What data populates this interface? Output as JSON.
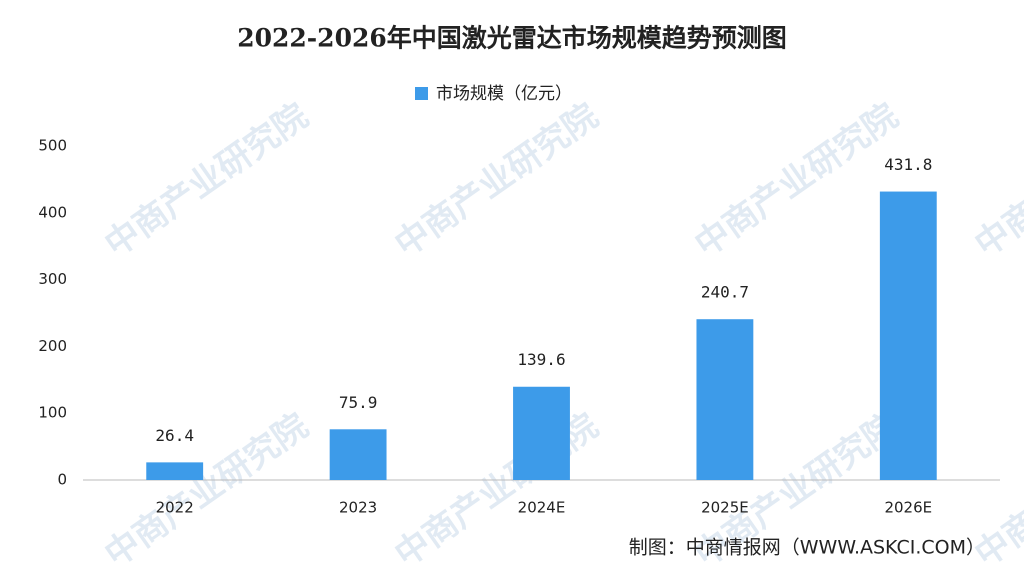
{
  "chart_data": {
    "type": "bar",
    "title": "2022-2026年中国激光雷达市场规模趋势预测图",
    "categories": [
      "2022",
      "2023",
      "2024E",
      "2025E",
      "2026E"
    ],
    "series": [
      {
        "name": "市场规模（亿元）",
        "color": "#3d9be9",
        "values": [
          26.4,
          75.9,
          139.6,
          240.7,
          431.8
        ]
      }
    ],
    "ylim": [
      0,
      500
    ],
    "yticks": [
      0,
      100,
      200,
      300,
      400,
      500
    ],
    "grid": false,
    "legend": "top",
    "source": "制图：中商情报网（WWW.ASKCI.COM）",
    "watermark": "中商产业研究院"
  }
}
